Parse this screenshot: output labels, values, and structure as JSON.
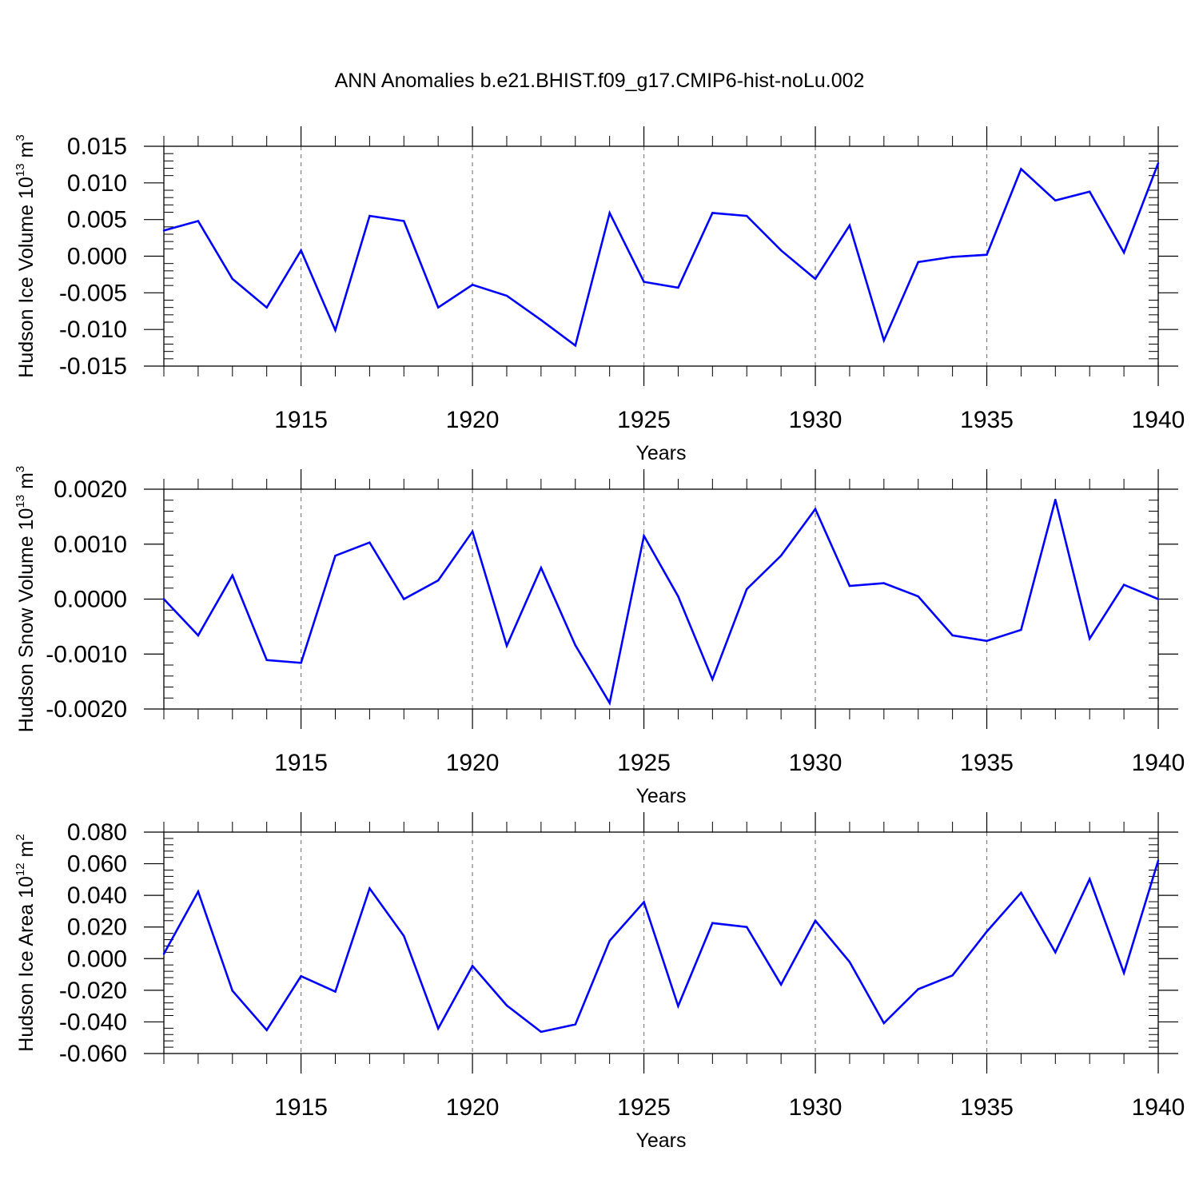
{
  "title": "ANN Anomalies b.e21.BHIST.f09_g17.CMIP6-hist-noLu.002",
  "colors": {
    "line": "#0000ff",
    "axis": "#000000",
    "grid": "#808080"
  },
  "chart_data": [
    {
      "type": "line",
      "ylabel_main": "Hudson Ice Volume 10",
      "ylabel_exp": "13",
      "ylabel_unit": " m",
      "ylabel_unit_exp": "3",
      "xlabel": "Years",
      "xlim": [
        1911,
        1940
      ],
      "ylim": [
        -0.015,
        0.015
      ],
      "yticks": [
        0.015,
        0.01,
        0.005,
        0.0,
        -0.005,
        -0.01,
        -0.015
      ],
      "ytick_labels": [
        "0.015",
        "0.010",
        "0.005",
        "0.000",
        "-0.005",
        "-0.010",
        "-0.015"
      ],
      "xticks": [
        1915,
        1920,
        1925,
        1930,
        1935,
        1940
      ],
      "xtick_labels": [
        "1915",
        "1920",
        "1925",
        "1930",
        "1935",
        "1940"
      ],
      "x": [
        1911,
        1912,
        1913,
        1914,
        1915,
        1916,
        1917,
        1918,
        1919,
        1920,
        1921,
        1922,
        1923,
        1924,
        1925,
        1926,
        1927,
        1928,
        1929,
        1930,
        1931,
        1932,
        1933,
        1934,
        1935,
        1936,
        1937,
        1938,
        1939,
        1940
      ],
      "values": [
        0.0035,
        0.0048,
        -0.0031,
        -0.007,
        0.0008,
        -0.0101,
        0.0055,
        0.0048,
        -0.007,
        -0.0039,
        -0.0054,
        -0.0087,
        -0.0122,
        0.0059,
        -0.0035,
        -0.0043,
        0.0059,
        0.0055,
        0.0008,
        -0.0031,
        0.0042,
        -0.0115,
        -0.0008,
        -0.0001,
        0.0002,
        0.0119,
        0.0076,
        0.0088,
        0.0005,
        0.0127
      ]
    },
    {
      "type": "line",
      "ylabel_main": "Hudson Snow Volume 10",
      "ylabel_exp": "13",
      "ylabel_unit": " m",
      "ylabel_unit_exp": "3",
      "xlabel": "Years",
      "xlim": [
        1911,
        1940
      ],
      "ylim": [
        -0.002,
        0.002
      ],
      "yticks": [
        0.002,
        0.001,
        0.0,
        -0.001,
        -0.002
      ],
      "ytick_labels": [
        "0.0020",
        "0.0010",
        "0.0000",
        "-0.0010",
        "-0.0020"
      ],
      "xticks": [
        1915,
        1920,
        1925,
        1930,
        1935,
        1940
      ],
      "xtick_labels": [
        "1915",
        "1920",
        "1925",
        "1930",
        "1935",
        "1940"
      ],
      "x": [
        1911,
        1912,
        1913,
        1914,
        1915,
        1916,
        1917,
        1918,
        1919,
        1920,
        1921,
        1922,
        1923,
        1924,
        1925,
        1926,
        1927,
        1928,
        1929,
        1930,
        1931,
        1932,
        1933,
        1934,
        1935,
        1936,
        1937,
        1938,
        1939,
        1940
      ],
      "values": [
        0.0,
        -0.00066,
        0.00043,
        -0.00111,
        -0.00116,
        0.00079,
        0.00103,
        0.0,
        0.00034,
        0.00123,
        -0.00085,
        0.00057,
        -0.00084,
        -0.00189,
        0.00115,
        5e-05,
        -0.00146,
        0.00018,
        0.00079,
        0.00164,
        0.00024,
        0.00029,
        5e-05,
        -0.00066,
        -0.00076,
        -0.00056,
        0.00181,
        -0.00072,
        0.00026,
        0.0
      ]
    },
    {
      "type": "line",
      "ylabel_main": "Hudson Ice Area 10",
      "ylabel_exp": "12",
      "ylabel_unit": " m",
      "ylabel_unit_exp": "2",
      "xlabel": "Years",
      "xlim": [
        1911,
        1940
      ],
      "ylim": [
        -0.06,
        0.08
      ],
      "yticks": [
        0.08,
        0.06,
        0.04,
        0.02,
        0.0,
        -0.02,
        -0.04,
        -0.06
      ],
      "ytick_labels": [
        "0.080",
        "0.060",
        "0.040",
        "0.020",
        "0.000",
        "-0.020",
        "-0.040",
        "-0.060"
      ],
      "xticks": [
        1915,
        1920,
        1925,
        1930,
        1935,
        1940
      ],
      "xtick_labels": [
        "1915",
        "1920",
        "1925",
        "1930",
        "1935",
        "1940"
      ],
      "x": [
        1911,
        1912,
        1913,
        1914,
        1915,
        1916,
        1917,
        1918,
        1919,
        1920,
        1921,
        1922,
        1923,
        1924,
        1925,
        1926,
        1927,
        1928,
        1929,
        1930,
        1931,
        1932,
        1933,
        1934,
        1935,
        1936,
        1937,
        1938,
        1939,
        1940
      ],
      "values": [
        0.003,
        0.0424,
        -0.0203,
        -0.0452,
        -0.0111,
        -0.0209,
        0.0444,
        0.0143,
        -0.0442,
        -0.0046,
        -0.0296,
        -0.0463,
        -0.0416,
        0.0113,
        0.0358,
        -0.03,
        0.0225,
        0.02,
        -0.0164,
        0.024,
        -0.0021,
        -0.0408,
        -0.0193,
        -0.0106,
        0.0171,
        0.0417,
        0.004,
        0.0503,
        -0.009,
        0.062
      ]
    }
  ]
}
